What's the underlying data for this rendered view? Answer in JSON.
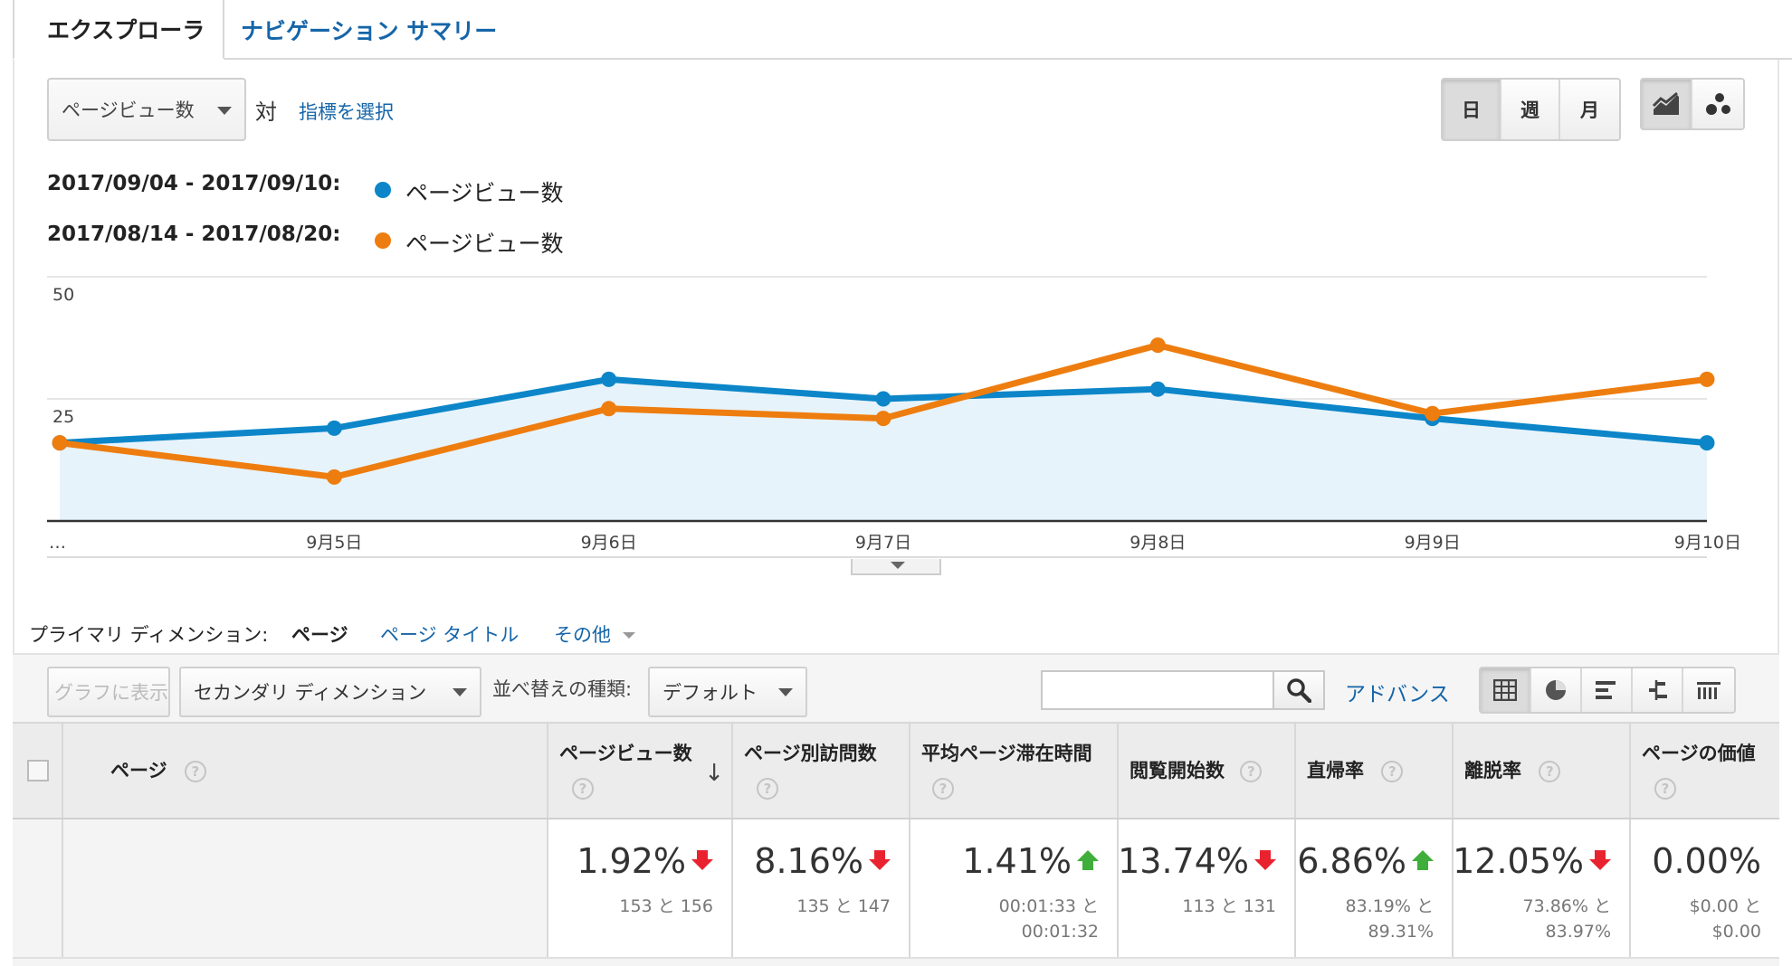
{
  "tabs": [
    {
      "label": "エクスプローラ",
      "active": true
    },
    {
      "label": "ナビゲーション サマリー",
      "active": false
    }
  ],
  "controls": {
    "metric_select": "ページビュー数",
    "vs_label": "対",
    "select_metric_link": "指標を選択",
    "period_buttons": [
      "日",
      "週",
      "月"
    ],
    "period_selected": "日",
    "chart_type_icons": [
      "line-chart-icon",
      "motion-chart-icon"
    ]
  },
  "legend": [
    {
      "range": "2017/09/04 - 2017/09/10:",
      "metric": "ページビュー数",
      "color": "#0c86c8"
    },
    {
      "range": "2017/08/14 - 2017/08/20:",
      "metric": "ページビュー数",
      "color": "#ee7d0f"
    }
  ],
  "chart_data": {
    "type": "line",
    "categories": [
      "…",
      "9月5日",
      "9月6日",
      "9月7日",
      "9月8日",
      "9月9日",
      "9月10日"
    ],
    "y_ticks": [
      25,
      50
    ],
    "ylim": [
      0,
      50
    ],
    "series": [
      {
        "name": "2017/09/04 - 2017/09/10: ページビュー数",
        "color": "#0c86c8",
        "area_fill": "#e7f3fb",
        "values": [
          16,
          19,
          29,
          25,
          27,
          21,
          16
        ]
      },
      {
        "name": "2017/08/14 - 2017/08/20: ページビュー数",
        "color": "#ee7d0f",
        "values": [
          16,
          9,
          23,
          21,
          36,
          22,
          29
        ]
      }
    ]
  },
  "dimension": {
    "label": "プライマリ ディメンション:",
    "active": "ページ",
    "links": [
      "ページ タイトル",
      "その他"
    ]
  },
  "toolbar": {
    "graph_button": "グラフに表示",
    "secondary_dimension": "セカンダリ ディメンション",
    "sort_label": "並べ替えの種類:",
    "sort_value": "デフォルト",
    "search_placeholder": "",
    "advanced_link": "アドバンス",
    "view_icons": [
      "table-view-icon",
      "pie-view-icon",
      "performance-view-icon",
      "comparison-view-icon",
      "pivot-view-icon"
    ]
  },
  "table": {
    "headers": [
      {
        "label": "ページ"
      },
      {
        "label": "ページビュー数"
      },
      {
        "label": "ページ別訪問数"
      },
      {
        "label": "平均ページ滞在時間"
      },
      {
        "label": "閲覧開始数"
      },
      {
        "label": "直帰率"
      },
      {
        "label": "離脱率"
      },
      {
        "label": "ページの価値"
      }
    ],
    "summary": [
      {
        "main": "1.92%",
        "trend": "down",
        "sub": [
          "153 と 156"
        ]
      },
      {
        "main": "8.16%",
        "trend": "down",
        "sub": [
          "135 と 147"
        ]
      },
      {
        "main": "1.41%",
        "trend": "up",
        "sub": [
          "00:01:33 と",
          "00:01:32"
        ]
      },
      {
        "main": "13.74%",
        "trend": "down",
        "sub": [
          "113 と 131"
        ]
      },
      {
        "main": "6.86%",
        "trend": "up",
        "sub": [
          "83.19% と",
          "89.31%"
        ]
      },
      {
        "main": "12.05%",
        "trend": "down",
        "sub": [
          "73.86% と",
          "83.97%"
        ]
      },
      {
        "main": "0.00%",
        "trend": "none",
        "sub": [
          "$0.00 と",
          "$0.00"
        ]
      }
    ]
  },
  "help_glyph": "?",
  "sort_arrow": "↓"
}
